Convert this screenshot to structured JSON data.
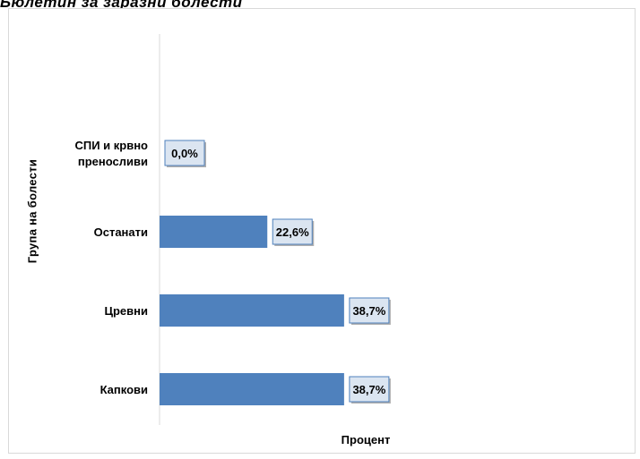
{
  "header": {
    "cut_title": "Бюлетин за заразни болести"
  },
  "chart_data": {
    "type": "bar",
    "orientation": "horizontal",
    "categories": [
      "СПИ и крвно преносливи",
      "Останати",
      "Цревни",
      "Капкови"
    ],
    "category_lines": [
      [
        "СПИ и крвно",
        "преносливи"
      ],
      [
        "Останати"
      ],
      [
        "Цревни"
      ],
      [
        "Капкови"
      ]
    ],
    "values": [
      0.0,
      22.6,
      38.7,
      38.7
    ],
    "data_labels": [
      "0,0%",
      "22,6%",
      "38,7%",
      "38,7%"
    ],
    "xlabel": "Процент",
    "ylabel": "Група на болести",
    "xlim": [
      0,
      40
    ],
    "grid": false,
    "legend": "none",
    "colors": {
      "bar": "#4f81bd",
      "label_fill": "#dbe5f1",
      "label_border": "#4f81bd",
      "axis": "#d9d9d9"
    }
  }
}
